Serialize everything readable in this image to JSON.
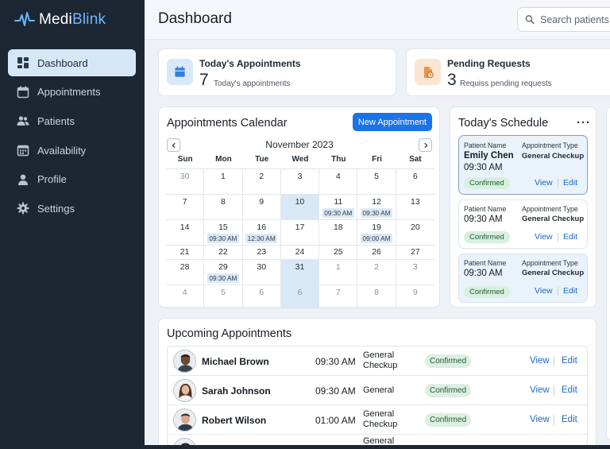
{
  "brand": {
    "part1": "Medi",
    "part2": "Blink"
  },
  "sidebar": {
    "items": [
      {
        "label": "Dashboard",
        "icon": "dashboard-icon",
        "active": true
      },
      {
        "label": "Appointments",
        "icon": "calendar-icon"
      },
      {
        "label": "Patients",
        "icon": "people-icon"
      },
      {
        "label": "Availability",
        "icon": "calendar-grid-icon"
      },
      {
        "label": "Profile",
        "icon": "person-icon"
      },
      {
        "label": "Settings",
        "icon": "gear-icon"
      }
    ]
  },
  "header": {
    "title": "Dashboard",
    "search_placeholder": "Search patients,"
  },
  "stats": {
    "today": {
      "title": "Today's Appointments",
      "value": "7",
      "sub": "Today's appointments",
      "icon": "calendar-icon"
    },
    "pending": {
      "title": "Pending Requests",
      "value": "3",
      "sub": "Requiss pending requests",
      "icon": "document-clock-icon"
    }
  },
  "calendar": {
    "title": "Appointments Calendar",
    "new_button": "New Appointment",
    "month": "November 2023",
    "weekdays": [
      "Sun",
      "Mon",
      "Tue",
      "Wed",
      "Thu",
      "Fri",
      "Sat"
    ],
    "weeks": [
      [
        {
          "d": "30",
          "m": true
        },
        {
          "d": "1"
        },
        {
          "d": "2"
        },
        {
          "d": "3"
        },
        {
          "d": "4"
        },
        {
          "d": "5"
        },
        {
          "d": "6"
        }
      ],
      [
        {
          "d": "7"
        },
        {
          "d": "8"
        },
        {
          "d": "9"
        },
        {
          "d": "10",
          "hl": true
        },
        {
          "d": "11",
          "evt": "09:30 AM"
        },
        {
          "d": "12",
          "evt": "09:30 AM"
        },
        {
          "d": "13"
        }
      ],
      [
        {
          "d": "14"
        },
        {
          "d": "15",
          "evt": "09:30 AM"
        },
        {
          "d": "16",
          "evt": "12:30 AM"
        },
        {
          "d": "17"
        },
        {
          "d": "18"
        },
        {
          "d": "19",
          "evt": "09:00 AM"
        },
        {
          "d": "20"
        }
      ],
      [
        {
          "d": "21"
        },
        {
          "d": "22"
        },
        {
          "d": "23"
        },
        {
          "d": "24"
        },
        {
          "d": "25"
        },
        {
          "d": "26"
        },
        {
          "d": "27"
        }
      ],
      [
        {
          "d": "28"
        },
        {
          "d": "29",
          "evt": "09:30 AM"
        },
        {
          "d": "30"
        },
        {
          "d": "31",
          "hl": true
        },
        {
          "d": "1",
          "m": true
        },
        {
          "d": "2",
          "m": true
        },
        {
          "d": "3",
          "m": true
        }
      ],
      [
        {
          "d": "4",
          "m": true
        },
        {
          "d": "5",
          "m": true
        },
        {
          "d": "6",
          "m": true
        },
        {
          "d": "6",
          "m": true,
          "hl": true
        },
        {
          "d": "7",
          "m": true
        },
        {
          "d": "8",
          "m": true
        },
        {
          "d": "9",
          "m": true
        }
      ]
    ]
  },
  "schedule": {
    "title": "Today's Schedule",
    "menu": "···",
    "items": [
      {
        "patient_label": "Patient Name",
        "name": "Emily Chen",
        "time": "09:30 AM",
        "type_label": "Appointment Type",
        "type": "General Checkup",
        "status": "Confirmed",
        "view": "View",
        "edit": "Edit"
      },
      {
        "patient_label": "Patient Name",
        "name": "",
        "time": "09:30 AM",
        "type_label": "Appointment Type",
        "type": "General Checkup",
        "status": "Confirmed",
        "view": "View",
        "edit": "Edit"
      },
      {
        "patient_label": "Patient Name",
        "name": "",
        "time": "09:30 AM",
        "type_label": "Appointment Type",
        "type": "General Checkup",
        "status": "Confirmed",
        "view": "View",
        "edit": "Edit"
      }
    ]
  },
  "upcoming": {
    "title": "Upcoming Appointments",
    "rows": [
      {
        "name": "Michael Brown",
        "time": "09:30 AM",
        "type": "General Checkup",
        "status": "Confirmed",
        "view": "View",
        "edit": "Edit"
      },
      {
        "name": "Sarah Johnson",
        "time": "09:30 AM",
        "type": "General",
        "status": "Confirmed",
        "view": "View",
        "edit": "Edit"
      },
      {
        "name": "Robert Wilson",
        "time": "01:00 AM",
        "type": "General Checkup",
        "status": "Confirmed",
        "view": "View",
        "edit": "Edit"
      },
      {
        "name": "",
        "time": "",
        "type": "General",
        "status": "",
        "view": "",
        "edit": ""
      }
    ]
  },
  "colors": {
    "sidebar": "#1c2733",
    "accent": "#1a73e8",
    "active_nav": "#d6e8f8",
    "confirmed_bg": "#d8f0de"
  }
}
